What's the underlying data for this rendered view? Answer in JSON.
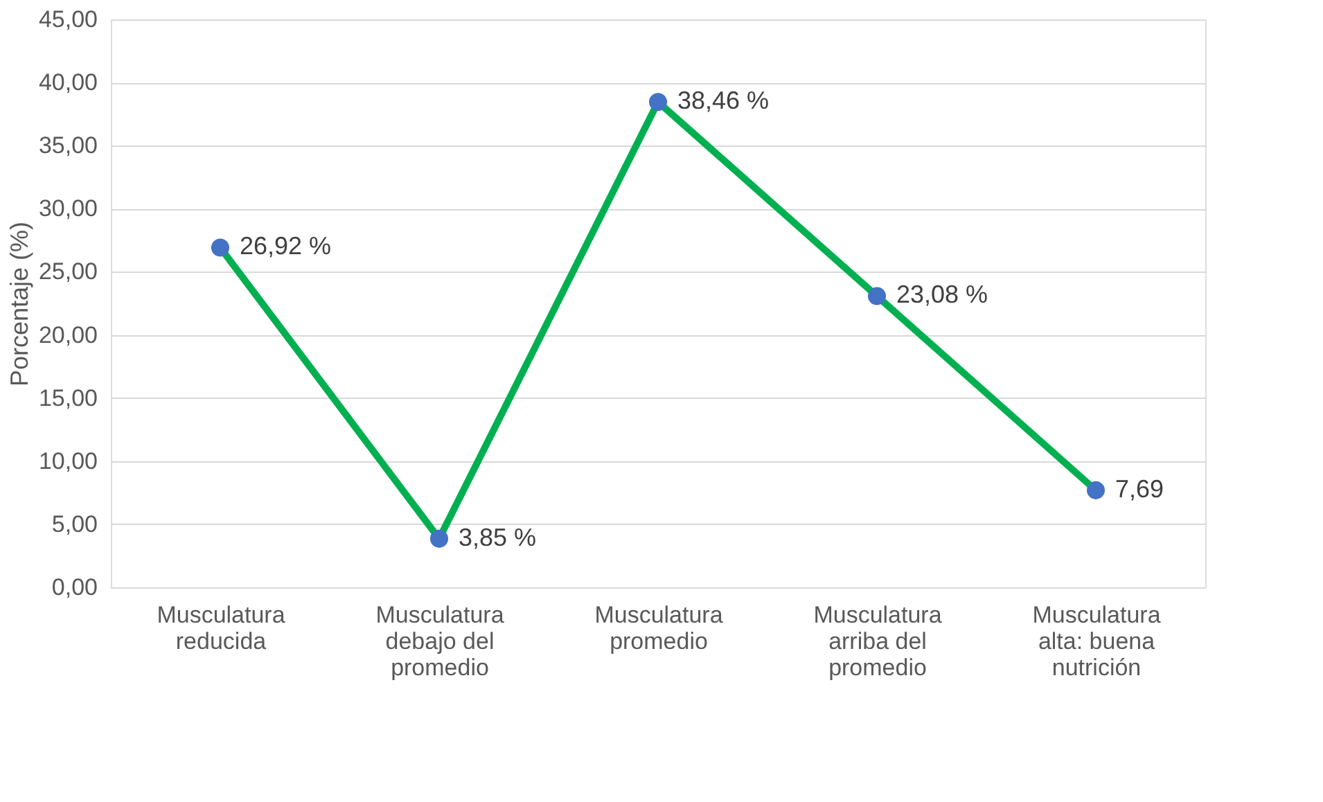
{
  "chart_data": {
    "type": "line",
    "ylabel": "Porcentaje (%)",
    "categories": [
      "Musculatura reducida",
      "Musculatura debajo del promedio",
      "Musculatura promedio",
      "Musculatura arriba del promedio",
      "Musculatura alta: buena nutrición"
    ],
    "series": [
      {
        "color": "#00b050",
        "colors": [
          "#4472c4",
          "#4472c4",
          "#4472c4",
          "#4472c4",
          "#4472c4"
        ],
        "values": [
          26.92,
          3.85,
          38.46,
          23.08,
          7.69
        ],
        "value_labels": [
          "26,92 %",
          "3,85 %",
          "38,46 %",
          "23,08 %",
          "7,69"
        ]
      }
    ],
    "ylim": [
      0,
      45
    ],
    "yticks": [
      {
        "value": 0,
        "label": "0,00"
      },
      {
        "value": 5,
        "label": "5,00"
      },
      {
        "value": 10,
        "label": "10,00"
      },
      {
        "value": 15,
        "label": "15,00"
      },
      {
        "value": 20,
        "label": "20,00"
      },
      {
        "value": 25,
        "label": "25,00"
      },
      {
        "value": 30,
        "label": "30,00"
      },
      {
        "value": 35,
        "label": "35,00"
      },
      {
        "value": 40,
        "label": "40,00"
      },
      {
        "value": 45,
        "label": "45,00"
      }
    ],
    "grid": "y",
    "marker": "circle",
    "line_style": "solid"
  }
}
